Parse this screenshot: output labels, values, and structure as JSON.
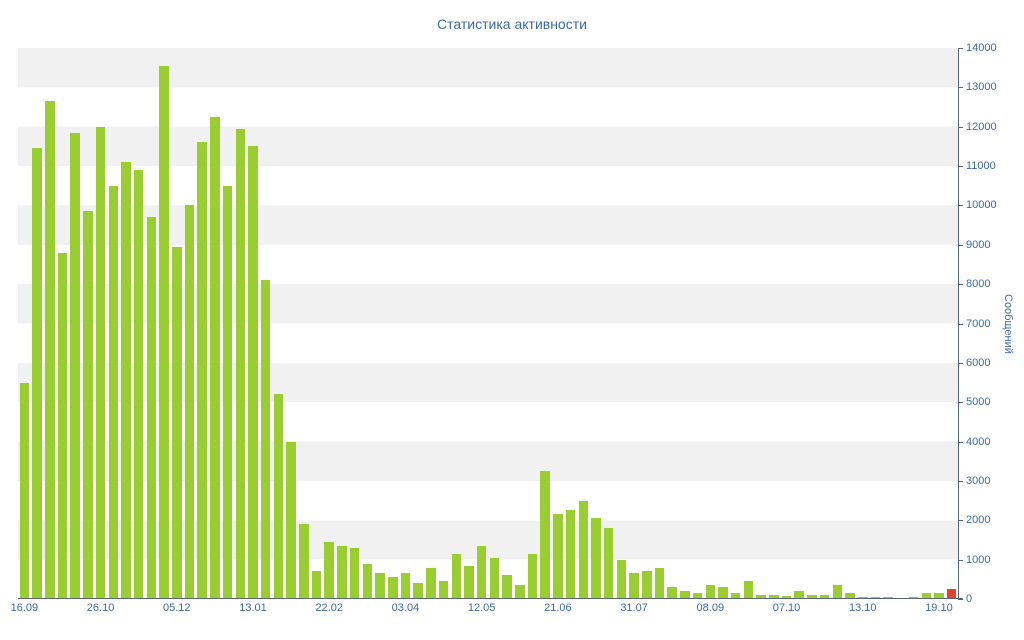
{
  "title": "Статистика активности",
  "chart_data": {
    "type": "bar",
    "title": "Статистика активности",
    "xlabel": "",
    "ylabel": "Сообщений",
    "ylim": [
      0,
      14000
    ],
    "ytick_step": 1000,
    "grid": "horizontal-stripes",
    "legend": "none",
    "x_tick_labels": [
      "16.09",
      "26.10",
      "05.12",
      "13.01",
      "22.02",
      "03.04",
      "12.05",
      "21.06",
      "31.07",
      "08.09",
      "07.10",
      "13.10",
      "19.10"
    ],
    "x_tick_every": 6,
    "values": [
      5500,
      11450,
      12650,
      8800,
      11850,
      9850,
      12000,
      10500,
      11100,
      10900,
      9700,
      13550,
      8950,
      10000,
      11600,
      12250,
      10500,
      11950,
      11500,
      8100,
      5200,
      4000,
      1900,
      700,
      1450,
      1350,
      1300,
      900,
      650,
      550,
      650,
      400,
      800,
      450,
      1150,
      850,
      1350,
      1050,
      600,
      350,
      1150,
      3250,
      2150,
      2250,
      2500,
      2050,
      1800,
      1000,
      650,
      700,
      800,
      300,
      200,
      150,
      350,
      300,
      150,
      450,
      100,
      100,
      70,
      200,
      100,
      100,
      350,
      150,
      60,
      50,
      40,
      30,
      40,
      150,
      150,
      250
    ],
    "bar_color": "#9acd32",
    "highlight_index": 73,
    "highlight_color": "#e2442f",
    "stripe_color": "#f1f1f1",
    "axis_color": "#55657c",
    "text_color": "#3c6ba0"
  }
}
